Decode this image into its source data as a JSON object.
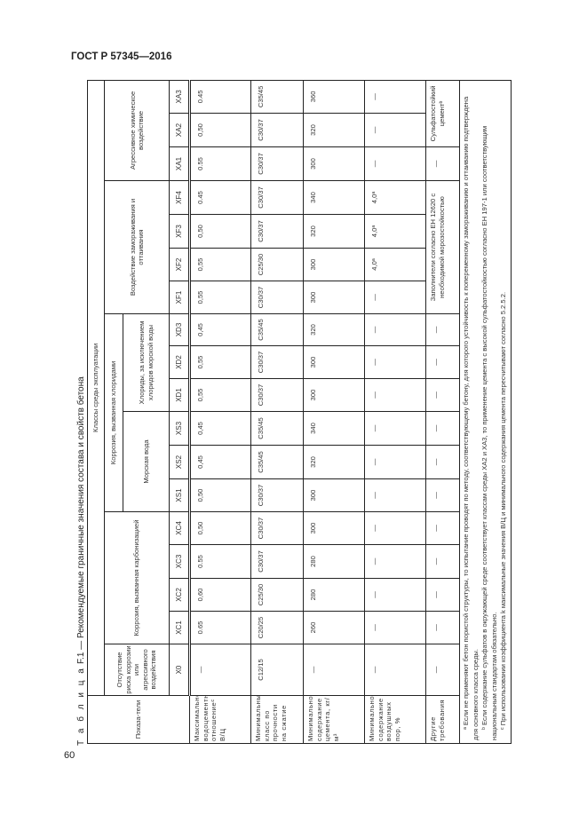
{
  "header": {
    "doc_number": "ГОСТ Р 57345—2016",
    "page_number": "60"
  },
  "caption": {
    "label": "Т а б л и ц а",
    "number": "F.1",
    "title": "— Рекомендуемые граничные значения состава и свойств бетона"
  },
  "table": {
    "indicators_header": "Показа-тели",
    "classes_header": "Классы среды эксплуатации",
    "groups": {
      "x0": "Отсутствие риска коррозии или агрессивного воздействия",
      "xc": "Коррозия, вызванная карбонизацией",
      "chlorides": "Коррозия, вызванная хлоридами",
      "xs": "Морская вода",
      "xd": "Хлориды, за исключением хлоридов морской воды",
      "xf": "Воздействие замораживания и оттаивания",
      "xa": "Агрессивное химическое воздействие"
    },
    "codes": [
      "X0",
      "XC1",
      "XC2",
      "XC3",
      "XC4",
      "XS1",
      "XS2",
      "XS3",
      "XD1",
      "XD2",
      "XD3",
      "XF1",
      "XF2",
      "XF3",
      "XF4",
      "XA1",
      "XA2",
      "XA3"
    ],
    "rows": [
      {
        "label": "Максимальное водоцементное отношениеᶜ В/Ц",
        "cells": [
          "—",
          "0.65",
          "0,60",
          "0.55",
          "0,50",
          "0,50",
          "0,45",
          "0,45",
          "0,55",
          "0,55",
          "0,45",
          "0,55",
          "0,55",
          "0,50",
          "0.45",
          "0.55",
          "0,50",
          "0.45"
        ]
      },
      {
        "label": "Минимальный класс по прочности на сжатие",
        "cells": [
          "C12/15",
          "C20/25",
          "C25/30",
          "C30/37",
          "C30/37",
          "C30/37",
          "C35/45",
          "C35/45",
          "C30/37",
          "C30/37",
          "C35/45",
          "C30/37",
          "C25/30",
          "C30/37",
          "C30/37",
          "C30/37",
          "C30/37",
          "C35/45"
        ]
      },
      {
        "label": "Минимальное содержание цемента, кг/м³",
        "cells": [
          "—",
          "260",
          "280",
          "280",
          "300",
          "300",
          "320",
          "340",
          "300",
          "300",
          "320",
          "300",
          "300",
          "320",
          "340",
          "300",
          "320",
          "360"
        ]
      },
      {
        "label": "Минимальное содержание воздушных пор, %",
        "cells": [
          "—",
          "—",
          "—",
          "—",
          "—",
          "—",
          "—",
          "—",
          "—",
          "—",
          "—",
          "—",
          "4,0ᵃ",
          "4,0ᵃ",
          "4,0ᵃ",
          "—",
          "—",
          "—"
        ]
      },
      {
        "label": "Другие требования",
        "cells": [
          "—",
          "—",
          "—",
          "—",
          "—",
          "—",
          "—",
          "—",
          "—",
          "—",
          "—",
          "Заполнители согласно ЕН 12620 с необходимой морозостойкостью",
          "—",
          "Сульфатостойкий цементᵇ"
        ]
      }
    ],
    "footnotes": [
      "ᵃ Если не применяют бетон пористой структуры, то испытание проводят по методу, соответствующему бетону, для которого устойчивость к попеременному замораживанию и оттаиванию подтверждена для основного класса среды.",
      "ᵇ Если содержание сульфатов в окружающей среде соответствует классам среды XA2 и XA3, то применение цемента с высокой сульфатостойкостью согласно ЕН 197-1 или соответствующим национальным стандартам обязательно.",
      "ᶜ При использовании коэффициента k максимальные значения В/Ц и минимального содержания цемента пересчитывают согласно 5.2.5.2."
    ]
  }
}
